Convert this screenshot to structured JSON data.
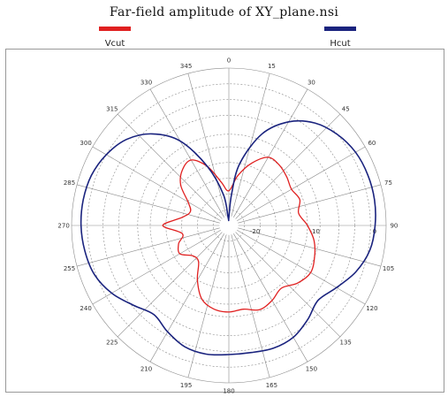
{
  "chart_data": {
    "type": "polar",
    "title": "Far-field amplitude of XY_plane.nsi",
    "legend_placement": "top",
    "grid": true,
    "series": [
      {
        "name": "Vcut",
        "color": "#e02020",
        "angles": [
          0,
          10,
          20,
          30,
          40,
          50,
          60,
          70,
          80,
          90,
          100,
          110,
          120,
          130,
          140,
          150,
          160,
          170,
          180,
          190,
          200,
          210,
          220,
          230,
          240,
          250,
          260,
          270,
          280,
          290,
          300,
          310,
          320,
          330,
          340,
          350
        ],
        "radius_fraction": [
          0.22,
          0.32,
          0.42,
          0.5,
          0.5,
          0.48,
          0.46,
          0.48,
          0.45,
          0.5,
          0.55,
          0.58,
          0.6,
          0.57,
          0.52,
          0.55,
          0.57,
          0.54,
          0.55,
          0.54,
          0.5,
          0.4,
          0.3,
          0.3,
          0.36,
          0.34,
          0.3,
          0.42,
          0.3,
          0.26,
          0.3,
          0.4,
          0.46,
          0.48,
          0.4,
          0.28
        ]
      },
      {
        "name": "Hcut",
        "color": "#1a237e",
        "angles": [
          0,
          5,
          10,
          20,
          30,
          40,
          50,
          60,
          70,
          80,
          90,
          100,
          110,
          120,
          130,
          140,
          150,
          160,
          170,
          180,
          190,
          200,
          210,
          220,
          230,
          240,
          250,
          260,
          270,
          280,
          290,
          300,
          310,
          320,
          330,
          340,
          350,
          355
        ],
        "radius_fraction": [
          0.05,
          0.2,
          0.4,
          0.62,
          0.76,
          0.85,
          0.9,
          0.93,
          0.94,
          0.94,
          0.93,
          0.91,
          0.86,
          0.79,
          0.74,
          0.78,
          0.82,
          0.83,
          0.82,
          0.82,
          0.83,
          0.82,
          0.78,
          0.74,
          0.79,
          0.86,
          0.91,
          0.93,
          0.94,
          0.94,
          0.93,
          0.9,
          0.85,
          0.76,
          0.62,
          0.4,
          0.2,
          0.05
        ]
      }
    ],
    "angle_labels": [
      "0",
      "15",
      "30",
      "45",
      "60",
      "75",
      "90",
      "105",
      "120",
      "135",
      "150",
      "165",
      "180",
      "195",
      "210",
      "225",
      "240",
      "255",
      "270",
      "285",
      "300",
      "315",
      "330",
      "345"
    ],
    "radial_labels": [
      "-20",
      "-10",
      "0"
    ],
    "radial_label_fraction": [
      0.2,
      0.58,
      0.96
    ]
  }
}
